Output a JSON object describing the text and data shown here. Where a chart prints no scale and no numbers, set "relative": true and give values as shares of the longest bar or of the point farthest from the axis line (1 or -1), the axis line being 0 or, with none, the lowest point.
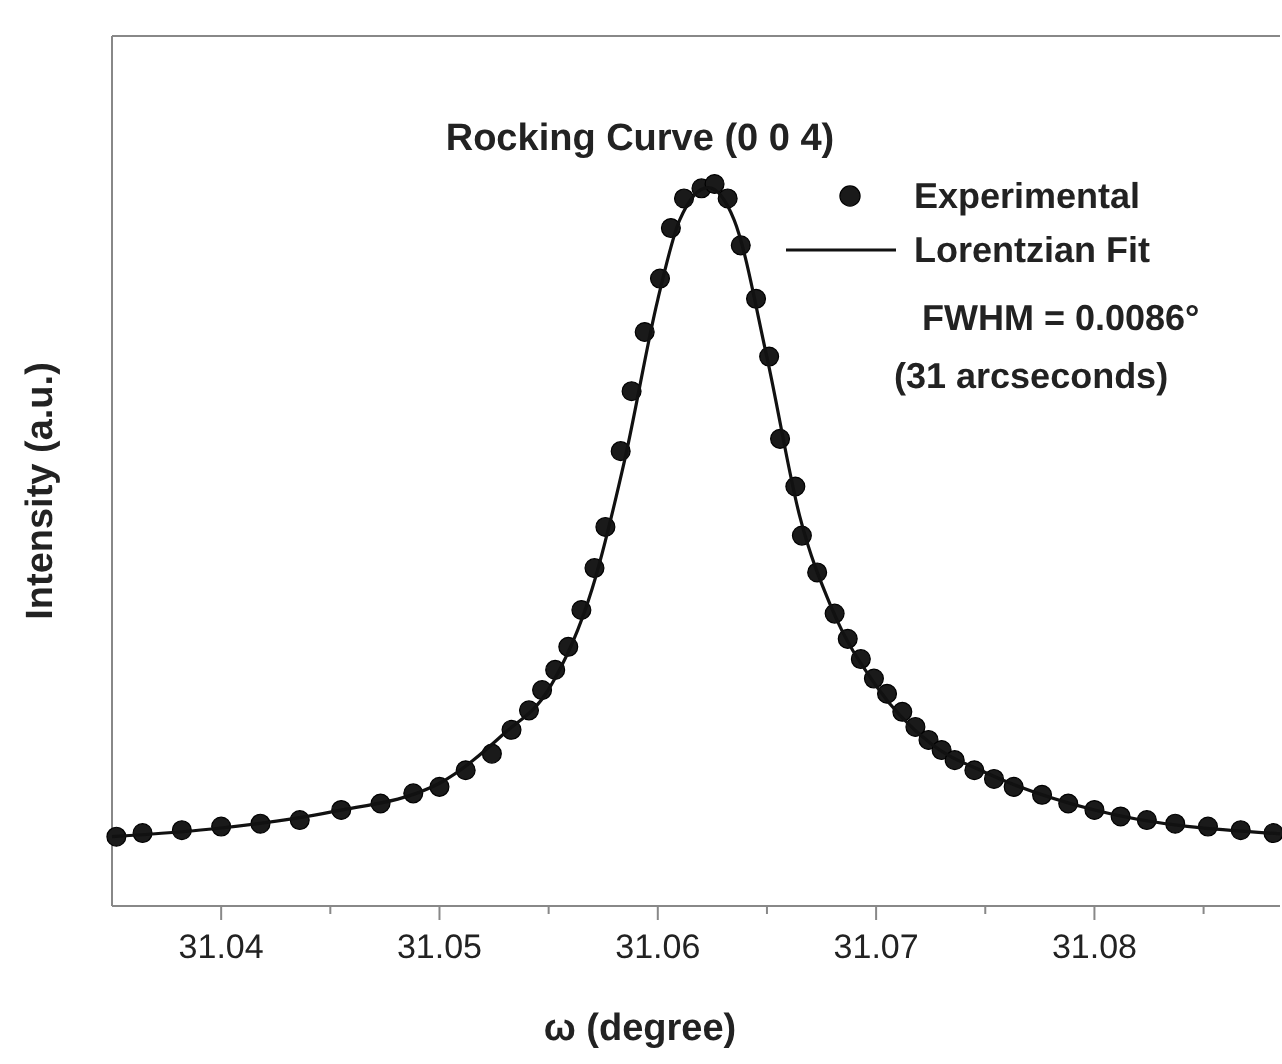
{
  "chart_data": {
    "type": "scatter",
    "title": "Rocking Curve (0 0 4)",
    "xlabel": "ω  (degree)",
    "ylabel": "Intensity (a.u.)",
    "relative": true,
    "xlim": [
      31.035,
      31.0885
    ],
    "xticks": [
      31.04,
      {
        "value": 31.045,
        "label": null
      },
      31.05,
      {
        "value": 31.055,
        "label": null
      },
      31.06,
      {
        "value": 31.065,
        "label": null
      },
      31.07,
      {
        "value": 31.075,
        "label": null
      },
      31.08,
      {
        "value": 31.085,
        "label": null
      }
    ],
    "legend": "top right",
    "annotations": [
      "FWHM = 0.0086°",
      "(31 arcseconds)"
    ],
    "series": [
      {
        "name": "Experimental",
        "type": "scatter",
        "marker": "circle",
        "color": "#1a1a1a",
        "x": [
          31.0352,
          31.0364,
          31.0382,
          31.04,
          31.0418,
          31.0436,
          31.0455,
          31.0473,
          31.0488,
          31.05,
          31.0512,
          31.0524,
          31.0533,
          31.0541,
          31.0547,
          31.0553,
          31.0559,
          31.0565,
          31.0571,
          31.0576,
          31.0583,
          31.0588,
          31.0594,
          31.0601,
          31.0606,
          31.0612,
          31.062,
          31.0626,
          31.0632,
          31.0638,
          31.0645,
          31.0651,
          31.0656,
          31.0663,
          31.0666,
          31.0673,
          31.0681,
          31.0687,
          31.0693,
          31.0699,
          31.0705,
          31.0712,
          31.0718,
          31.0724,
          31.073,
          31.0736,
          31.0745,
          31.0754,
          31.0763,
          31.0776,
          31.0788,
          31.08,
          31.0812,
          31.0824,
          31.0837,
          31.0852,
          31.0867,
          31.0882
        ],
        "values": [
          0.096,
          0.101,
          0.105,
          0.11,
          0.114,
          0.119,
          0.133,
          0.142,
          0.156,
          0.165,
          0.188,
          0.211,
          0.244,
          0.271,
          0.299,
          0.327,
          0.359,
          0.41,
          0.468,
          0.525,
          0.63,
          0.713,
          0.795,
          0.869,
          0.939,
          0.98,
          0.994,
          1,
          0.98,
          0.915,
          0.841,
          0.761,
          0.647,
          0.581,
          0.513,
          0.462,
          0.405,
          0.37,
          0.342,
          0.315,
          0.294,
          0.269,
          0.248,
          0.23,
          0.216,
          0.202,
          0.188,
          0.176,
          0.165,
          0.154,
          0.142,
          0.133,
          0.124,
          0.119,
          0.114,
          0.11,
          0.105,
          0.101
        ]
      },
      {
        "name": "Lorentzian Fit",
        "type": "line",
        "line_style": "solid",
        "marker": "none",
        "color": "#111111",
        "x": [
          31.035,
          31.04,
          31.045,
          31.05,
          31.053,
          31.055,
          31.057,
          31.0585,
          31.06,
          31.061,
          31.0623,
          31.0635,
          31.065,
          31.0665,
          31.068,
          31.07,
          31.0725,
          31.075,
          31.08,
          31.0885
        ],
        "values": [
          0.096,
          0.108,
          0.13,
          0.17,
          0.24,
          0.3,
          0.44,
          0.62,
          0.84,
          0.95,
          0.995,
          0.95,
          0.76,
          0.54,
          0.41,
          0.305,
          0.225,
          0.185,
          0.133,
          0.1
        ]
      }
    ]
  }
}
